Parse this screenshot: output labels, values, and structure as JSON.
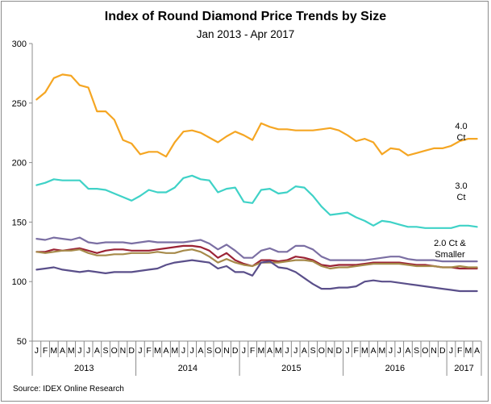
{
  "title": "Index of Round Diamond Price Trends by Size",
  "subtitle": "Jan 2013 - Apr 2017",
  "source": "Source:  IDEX Online Research",
  "chart_data": {
    "type": "line",
    "title": "Index of Round Diamond Price Trends by Size",
    "subtitle": "Jan 2013 - Apr 2017",
    "ylim": [
      50,
      300
    ],
    "yticks": [
      50,
      100,
      150,
      200,
      250,
      300
    ],
    "grid": false,
    "legend": "none",
    "month_labels": [
      "J",
      "F",
      "M",
      "A",
      "M",
      "J",
      "J",
      "A",
      "S",
      "O",
      "N",
      "D",
      "J",
      "F",
      "M",
      "A",
      "M",
      "J",
      "J",
      "A",
      "S",
      "O",
      "N",
      "D",
      "J",
      "F",
      "M",
      "A",
      "M",
      "J",
      "J",
      "A",
      "S",
      "O",
      "N",
      "D",
      "J",
      "F",
      "M",
      "A",
      "M",
      "J",
      "J",
      "A",
      "S",
      "O",
      "N",
      "D",
      "J",
      "F",
      "M",
      "A"
    ],
    "year_labels": [
      {
        "label": "2013",
        "start": 0,
        "end": 12
      },
      {
        "label": "2014",
        "start": 12,
        "end": 24
      },
      {
        "label": "2015",
        "start": 24,
        "end": 36
      },
      {
        "label": "2016",
        "start": 36,
        "end": 48
      },
      {
        "label": "2017",
        "start": 48,
        "end": 52
      }
    ],
    "series": [
      {
        "name": "4.0 Ct",
        "color": "#f5a623",
        "values": [
          253,
          259,
          271,
          274,
          273,
          265,
          263,
          243,
          243,
          236,
          219,
          216,
          207,
          209,
          209,
          205,
          217,
          226,
          227,
          225,
          221,
          217,
          222,
          226,
          223,
          219,
          233,
          230,
          228,
          228,
          227,
          227,
          227,
          228,
          229,
          227,
          223,
          218,
          220,
          217,
          207,
          212,
          211,
          206,
          208,
          210,
          212,
          212,
          214,
          218,
          220,
          220
        ]
      },
      {
        "name": "3.0 Ct",
        "color": "#3fd2c7",
        "values": [
          181,
          183,
          186,
          185,
          185,
          185,
          178,
          178,
          177,
          174,
          171,
          168,
          172,
          177,
          175,
          175,
          179,
          187,
          189,
          186,
          185,
          175,
          178,
          179,
          167,
          166,
          177,
          178,
          174,
          175,
          180,
          179,
          172,
          163,
          156,
          157,
          158,
          154,
          151,
          147,
          151,
          150,
          148,
          146,
          146,
          145,
          145,
          145,
          145,
          147,
          147,
          146
        ]
      },
      {
        "name": "2.0 Ct & Smaller",
        "color": "#7b6fa3",
        "values": [
          136,
          135,
          137,
          136,
          135,
          137,
          133,
          132,
          133,
          133,
          133,
          132,
          133,
          134,
          133,
          133,
          133,
          133,
          134,
          135,
          132,
          127,
          131,
          126,
          120,
          120,
          126,
          128,
          125,
          125,
          130,
          130,
          127,
          121,
          118,
          118,
          118,
          118,
          118,
          119,
          120,
          121,
          121,
          119,
          118,
          118,
          118,
          117,
          117,
          117,
          117,
          117
        ]
      },
      {
        "name": "",
        "color": "#9b2335",
        "values": [
          125,
          125,
          127,
          126,
          127,
          128,
          126,
          124,
          126,
          127,
          127,
          126,
          126,
          126,
          127,
          128,
          129,
          130,
          130,
          129,
          126,
          120,
          124,
          118,
          115,
          113,
          118,
          118,
          117,
          118,
          121,
          120,
          118,
          114,
          113,
          114,
          114,
          114,
          115,
          116,
          116,
          116,
          116,
          115,
          114,
          114,
          113,
          112,
          112,
          111,
          111,
          111
        ]
      },
      {
        "name": "",
        "color": "#a68a4a",
        "values": [
          125,
          124,
          125,
          126,
          126,
          127,
          124,
          122,
          122,
          123,
          123,
          124,
          124,
          124,
          125,
          124,
          124,
          126,
          127,
          125,
          121,
          116,
          119,
          116,
          114,
          113,
          116,
          116,
          116,
          117,
          118,
          118,
          117,
          113,
          111,
          112,
          112,
          113,
          114,
          115,
          115,
          115,
          115,
          114,
          113,
          113,
          113,
          112,
          112,
          113,
          112,
          112
        ]
      },
      {
        "name": "",
        "color": "#5a4f8a",
        "values": [
          110,
          111,
          112,
          110,
          109,
          108,
          109,
          108,
          107,
          108,
          108,
          108,
          109,
          110,
          111,
          114,
          116,
          117,
          118,
          117,
          116,
          111,
          113,
          108,
          108,
          105,
          116,
          117,
          112,
          111,
          108,
          103,
          98,
          94,
          94,
          95,
          95,
          96,
          100,
          101,
          100,
          100,
          99,
          98,
          97,
          96,
          95,
          94,
          93,
          92,
          92,
          92
        ]
      }
    ]
  }
}
